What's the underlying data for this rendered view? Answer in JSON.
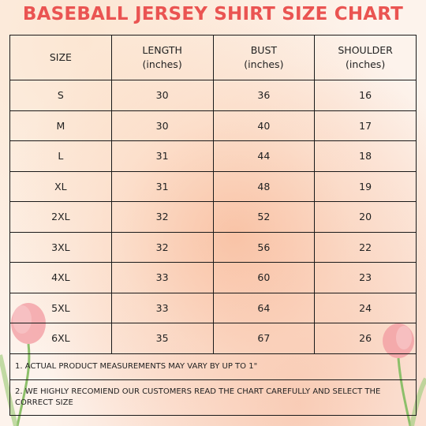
{
  "header": {
    "title": "BASEBALL JERSEY SHIRT SIZE CHART"
  },
  "table": {
    "columns": [
      {
        "label": "SIZE"
      },
      {
        "label": "LENGTH",
        "unit": "(inches)"
      },
      {
        "label": "BUST",
        "unit": "(inches)"
      },
      {
        "label": "SHOULDER",
        "unit": "(inches)"
      }
    ],
    "rows": [
      [
        "S",
        30,
        36,
        16
      ],
      [
        "M",
        30,
        40,
        17
      ],
      [
        "L",
        31,
        44,
        18
      ],
      [
        "XL",
        31,
        48,
        19
      ],
      [
        "2XL",
        32,
        52,
        20
      ],
      [
        "3XL",
        32,
        56,
        22
      ],
      [
        "4XL",
        33,
        60,
        23
      ],
      [
        "5XL",
        33,
        64,
        24
      ],
      [
        "6XL",
        35,
        67,
        26
      ]
    ],
    "notes": [
      "1. ACTUAL PRODUCT MEASUREMENTS MAY VARY BY UP TO 1\"",
      "2. WE HIGHLY RECOMIEND OUR CUSTOMERS READ THE CHART CAREFULLY AND SELECT THE CORRECT SIZE"
    ]
  }
}
